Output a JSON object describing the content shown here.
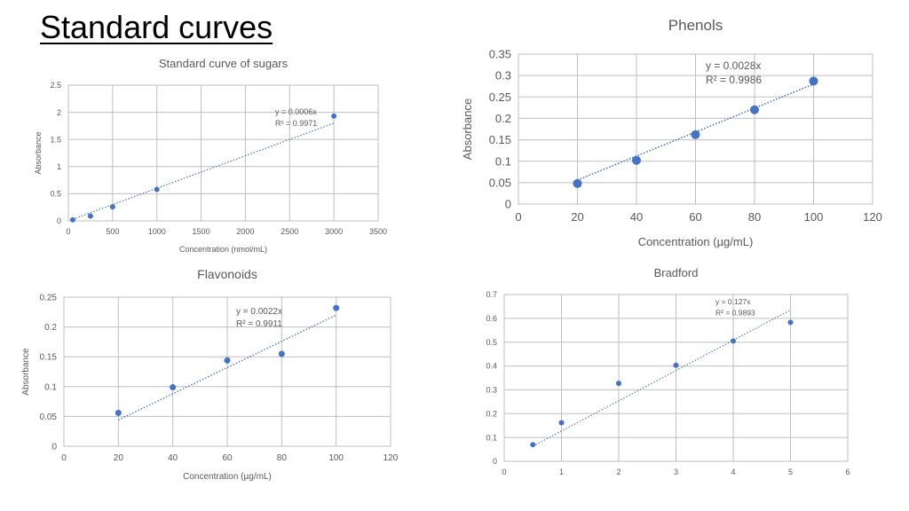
{
  "slide": {
    "title": "Standard curves"
  },
  "colors": {
    "marker": "#4472C4",
    "grid": "#BFBFBF",
    "text": "#595959",
    "trendline": "#4472C4"
  },
  "chart_data": [
    {
      "id": "sugars",
      "type": "scatter",
      "title": "Standard curve of sugars",
      "xlabel": "Concentration (nmol/mL)",
      "ylabel": "Absorbance",
      "xlim": [
        0,
        3500
      ],
      "ylim": [
        0,
        2.5
      ],
      "xticks": [
        0,
        500,
        1000,
        1500,
        2000,
        2500,
        3000,
        3500
      ],
      "yticks": [
        0,
        0.5,
        1,
        1.5,
        2,
        2.5
      ],
      "xtick_labels": [
        "0",
        "500",
        "1000",
        "1500",
        "2000",
        "2500",
        "3000",
        "3500"
      ],
      "ytick_labels": [
        "0",
        "0.5",
        "1",
        "1.5",
        "2",
        "2.5"
      ],
      "grid": true,
      "series": [
        {
          "points": [
            [
              50,
              0.02
            ],
            [
              250,
              0.09
            ],
            [
              500,
              0.26
            ],
            [
              1000,
              0.58
            ],
            [
              3000,
              1.93
            ]
          ]
        }
      ],
      "trendline": {
        "slope": 0.0006,
        "x_range": [
          50,
          3000
        ]
      },
      "equation": "y = 0.0006x",
      "r2": "R² = 0.9971"
    },
    {
      "id": "phenols",
      "type": "scatter",
      "title": "Phenols",
      "xlabel": "Concentration (µg/mL)",
      "ylabel": "Absorbance",
      "xlim": [
        0,
        120
      ],
      "ylim": [
        0,
        0.35
      ],
      "xticks": [
        0,
        20,
        40,
        60,
        80,
        100,
        120
      ],
      "yticks": [
        0,
        0.05,
        0.1,
        0.15,
        0.2,
        0.25,
        0.3,
        0.35
      ],
      "xtick_labels": [
        "0",
        "20",
        "40",
        "60",
        "80",
        "100",
        "120"
      ],
      "ytick_labels": [
        "0",
        "0.05",
        "0.1",
        "0.15",
        "0.2",
        "0.25",
        "0.3",
        "0.35"
      ],
      "grid": true,
      "series": [
        {
          "points": [
            [
              20,
              0.048
            ],
            [
              40,
              0.102
            ],
            [
              60,
              0.162
            ],
            [
              80,
              0.22
            ],
            [
              100,
              0.287
            ]
          ]
        }
      ],
      "trendline": {
        "slope": 0.0028,
        "x_range": [
          20,
          100
        ]
      },
      "equation": "y = 0.0028x",
      "r2": "R² = 0.9986"
    },
    {
      "id": "flavonoids",
      "type": "scatter",
      "title": "Flavonoids",
      "xlabel": "Concentration (µg/mL)",
      "ylabel": "Absorbance",
      "xlim": [
        0,
        120
      ],
      "ylim": [
        0,
        0.25
      ],
      "xticks": [
        0,
        20,
        40,
        60,
        80,
        100,
        120
      ],
      "yticks": [
        0,
        0.05,
        0.1,
        0.15,
        0.2,
        0.25
      ],
      "xtick_labels": [
        "0",
        "20",
        "40",
        "60",
        "80",
        "100",
        "120"
      ],
      "ytick_labels": [
        "0",
        "0.05",
        "0.1",
        "0.15",
        "0.2",
        "0.25"
      ],
      "grid": true,
      "series": [
        {
          "points": [
            [
              20,
              0.056
            ],
            [
              40,
              0.099
            ],
            [
              60,
              0.144
            ],
            [
              80,
              0.155
            ],
            [
              100,
              0.232
            ]
          ]
        }
      ],
      "trendline": {
        "slope": 0.0022,
        "x_range": [
          20,
          100
        ]
      },
      "equation": "y = 0.0022x",
      "r2": "R² = 0.9911"
    },
    {
      "id": "bradford",
      "type": "scatter",
      "title": "Bradford",
      "xlabel": "",
      "ylabel": "",
      "xlim": [
        0,
        6
      ],
      "ylim": [
        0,
        0.7
      ],
      "xticks": [
        0,
        1,
        2,
        3,
        4,
        5,
        6
      ],
      "yticks": [
        0,
        0.1,
        0.2,
        0.3,
        0.4,
        0.5,
        0.6,
        0.7
      ],
      "xtick_labels": [
        "0",
        "1",
        "2",
        "3",
        "4",
        "5",
        "6"
      ],
      "ytick_labels": [
        "0",
        "0.1",
        "0.2",
        "0.3",
        "0.4",
        "0.5",
        "0.6",
        "0.7"
      ],
      "grid": true,
      "series": [
        {
          "points": [
            [
              0.5,
              0.07
            ],
            [
              1,
              0.162
            ],
            [
              2,
              0.327
            ],
            [
              3,
              0.403
            ],
            [
              4,
              0.505
            ],
            [
              5,
              0.583
            ]
          ]
        }
      ],
      "trendline": {
        "slope": 0.127,
        "x_range": [
          0.5,
          5
        ]
      },
      "equation": "y = 0.127x",
      "r2": "R² = 0.9893"
    }
  ]
}
